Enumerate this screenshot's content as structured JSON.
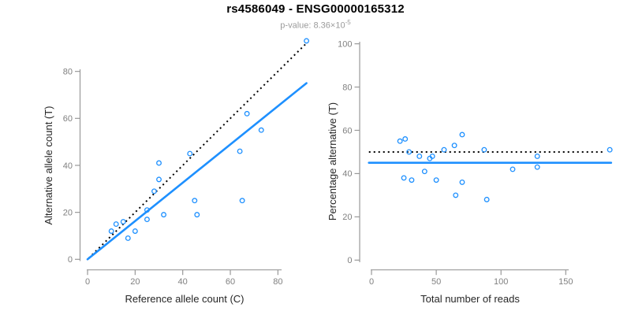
{
  "header": {
    "title": "rs4586049 - ENSG00000165312",
    "pvalue_prefix": "p-value: 8.36×10",
    "pvalue_exponent": "-5"
  },
  "colors": {
    "point": "#1E90FF",
    "fit_line": "#1E90FF",
    "identity_line": "#000000",
    "axis": "#999999",
    "tick_label": "#808080",
    "axis_title": "#262626",
    "subtitle": "#9B9B9B"
  },
  "chart_data": [
    {
      "type": "scatter",
      "name": "allele-count-scatter",
      "xlabel": "Reference allele count (C)",
      "ylabel": "Alternative allele count (T)",
      "xticks": [
        0,
        20,
        40,
        60,
        80
      ],
      "yticks": [
        0,
        20,
        40,
        60,
        80
      ],
      "xlim": [
        0,
        95
      ],
      "ylim": [
        0,
        95
      ],
      "grid": false,
      "legend": "none",
      "points": [
        [
          10,
          12
        ],
        [
          12,
          15
        ],
        [
          15,
          16
        ],
        [
          17,
          9
        ],
        [
          20,
          12
        ],
        [
          25,
          17
        ],
        [
          25,
          21
        ],
        [
          28,
          29
        ],
        [
          30,
          34
        ],
        [
          30,
          41
        ],
        [
          32,
          19
        ],
        [
          43,
          45
        ],
        [
          45,
          25
        ],
        [
          46,
          19
        ],
        [
          64,
          46
        ],
        [
          65,
          25
        ],
        [
          67,
          62
        ],
        [
          73,
          55
        ],
        [
          92,
          93
        ]
      ],
      "identity_line": {
        "style": "dotted",
        "x1": 0.5,
        "y1": 0.5,
        "x2": 91.5,
        "y2": 91.5
      },
      "fit_line": {
        "style": "solid",
        "x1": 0,
        "y1": 0,
        "x2": 92,
        "y2": 75
      }
    },
    {
      "type": "scatter",
      "name": "percentage-scatter",
      "xlabel": "Total number of reads",
      "ylabel": "Percentage alternative (T)",
      "xticks": [
        0,
        50,
        100,
        150
      ],
      "yticks": [
        0,
        20,
        40,
        60,
        80,
        100
      ],
      "xlim": [
        0,
        190
      ],
      "ylim": [
        0,
        100
      ],
      "grid": false,
      "legend": "none",
      "points": [
        [
          22,
          55
        ],
        [
          25,
          38
        ],
        [
          26,
          56
        ],
        [
          29,
          50
        ],
        [
          31,
          37
        ],
        [
          37,
          48
        ],
        [
          41,
          41
        ],
        [
          45,
          47
        ],
        [
          47,
          48
        ],
        [
          50,
          37
        ],
        [
          56,
          51
        ],
        [
          64,
          53
        ],
        [
          65,
          30
        ],
        [
          70,
          36
        ],
        [
          70,
          58
        ],
        [
          87,
          51
        ],
        [
          89,
          28
        ],
        [
          109,
          42
        ],
        [
          128,
          43
        ],
        [
          128,
          48
        ],
        [
          184,
          51
        ]
      ],
      "identity_line": {
        "style": "dotted",
        "x1": -2,
        "y1": 50,
        "x2": 180,
        "y2": 50
      },
      "fit_line": {
        "style": "solid",
        "x1": -2,
        "y1": 45,
        "x2": 185,
        "y2": 45
      }
    }
  ]
}
